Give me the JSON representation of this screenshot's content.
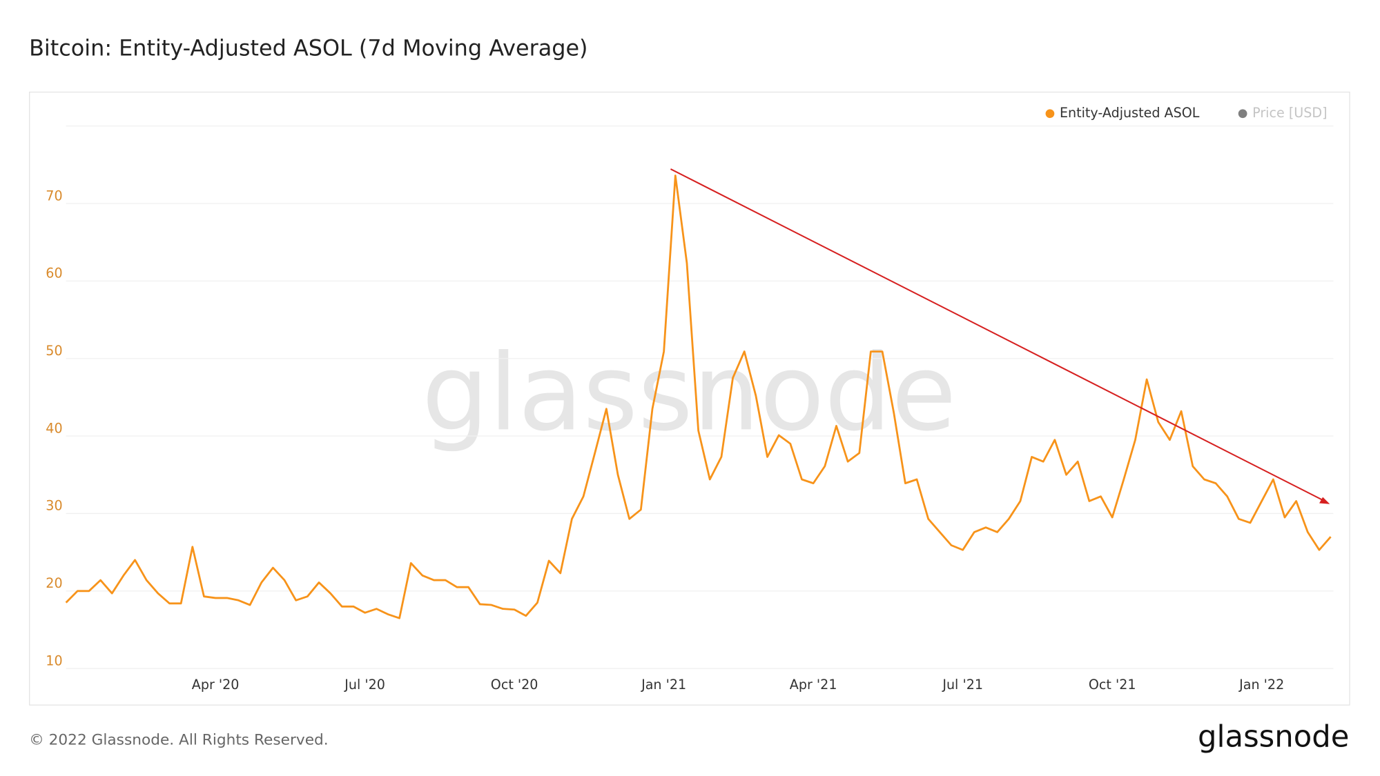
{
  "chart_data": {
    "type": "line",
    "title": "Bitcoin: Entity-Adjusted ASOL (7d Moving Average)",
    "categories": [
      null,
      null,
      null,
      null,
      null,
      null,
      null,
      null,
      null,
      null,
      null,
      null,
      null,
      "Apr '20",
      null,
      null,
      null,
      null,
      null,
      null,
      null,
      null,
      null,
      null,
      null,
      null,
      "Jul '20",
      null,
      null,
      null,
      null,
      null,
      null,
      null,
      null,
      null,
      null,
      null,
      null,
      "Oct '20",
      null,
      null,
      null,
      null,
      null,
      null,
      null,
      null,
      null,
      null,
      null,
      null,
      "Jan '21",
      null,
      null,
      null,
      null,
      null,
      null,
      null,
      null,
      null,
      null,
      null,
      null,
      "Apr '21",
      null,
      null,
      null,
      null,
      null,
      null,
      null,
      null,
      null,
      null,
      null,
      null,
      "Jul '21",
      null,
      null,
      null,
      null,
      null,
      null,
      null,
      null,
      null,
      null,
      null,
      null,
      "Oct '21",
      null,
      null,
      null,
      null,
      null,
      null,
      null,
      null,
      null,
      null,
      null,
      null,
      "Jan '22",
      null,
      null,
      null,
      null,
      null,
      null
    ],
    "series": [
      {
        "name": "Entity-Adjusted ASOL",
        "color": "#f7931a",
        "values": [
          18.5,
          20,
          20,
          21.4,
          19.7,
          22,
          24,
          21.4,
          19.7,
          18.4,
          18.4,
          25.7,
          19.3,
          19.1,
          19.1,
          18.8,
          18.2,
          21.1,
          23,
          21.4,
          18.8,
          19.3,
          21.1,
          19.7,
          18,
          18,
          17.2,
          17.7,
          17,
          16.5,
          23.6,
          22,
          21.4,
          21.4,
          20.5,
          20.5,
          18.3,
          18.2,
          17.7,
          17.6,
          16.8,
          18.5,
          23.9,
          22.3,
          29.3,
          32.2,
          37.8,
          43.5,
          35,
          29.3,
          30.5,
          43.5,
          50.9,
          73.6,
          62.3,
          40.7,
          34.4,
          37.3,
          47.5,
          50.9,
          45.2,
          37.3,
          40.1,
          39,
          34.4,
          33.9,
          36.1,
          41.3,
          36.7,
          37.8,
          50.9,
          50.9,
          43,
          33.9,
          34.4,
          29.3,
          27.6,
          25.9,
          25.3,
          27.6,
          28.2,
          27.6,
          29.3,
          31.6,
          37.3,
          36.7,
          39.5,
          35,
          36.7,
          31.6,
          32.2,
          29.5,
          34.4,
          39.5,
          47.3,
          41.8,
          39.5,
          43.2,
          36.1,
          34.4,
          33.9,
          32.2,
          29.3,
          28.8,
          31.6,
          34.4,
          29.5,
          31.6,
          27.6,
          25.3,
          27
        ]
      }
    ],
    "inactive_legend": {
      "name": "Price [USD]",
      "color": "#7f7f7f"
    },
    "ylim": [
      10,
      80
    ],
    "yticks": [
      10,
      20,
      30,
      40,
      50,
      60,
      70
    ],
    "grid": true,
    "legend": "top-right",
    "watermark": "glassnode",
    "footer": "© 2022 Glassnode. All Rights Reserved.",
    "logo": "glassnode"
  }
}
